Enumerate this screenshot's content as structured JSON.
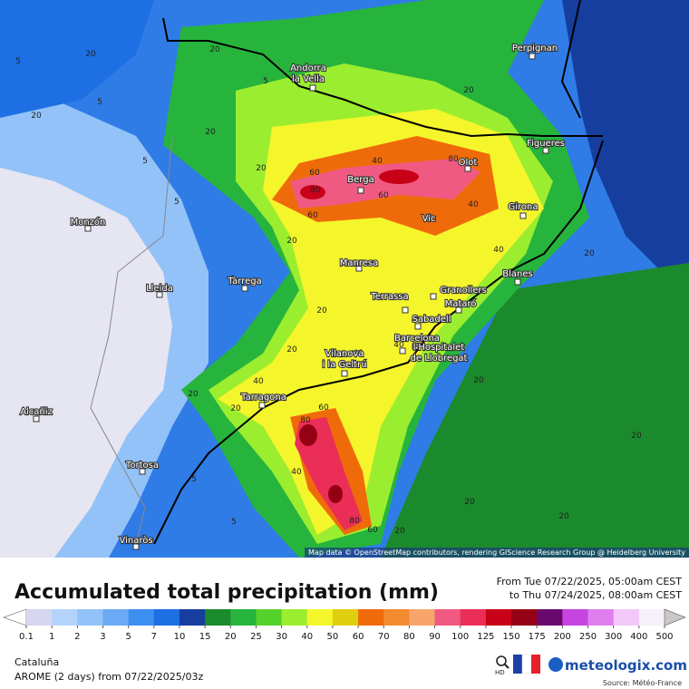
{
  "map": {
    "cities": [
      {
        "label": [
          "Perpignan"
        ]
      },
      {
        "label": [
          "Andorra",
          "la Vella"
        ]
      },
      {
        "label": [
          "Figueres"
        ]
      },
      {
        "label": [
          "Olot"
        ]
      },
      {
        "label": [
          "Berga"
        ]
      },
      {
        "label": [
          "Vic"
        ]
      },
      {
        "label": [
          "Girona"
        ]
      },
      {
        "label": [
          "Monzón"
        ]
      },
      {
        "label": [
          "Manresa"
        ]
      },
      {
        "label": [
          "Blanes"
        ]
      },
      {
        "label": [
          "Tàrrega"
        ]
      },
      {
        "label": [
          "Lleida"
        ]
      },
      {
        "label": [
          "Terrassa"
        ]
      },
      {
        "label": [
          "Granollers"
        ]
      },
      {
        "label": [
          "Mataró"
        ]
      },
      {
        "label": [
          "Sabadell"
        ]
      },
      {
        "label": [
          "Barcelona"
        ]
      },
      {
        "label": [
          "l'Hospitalet",
          "de Llobregat"
        ]
      },
      {
        "label": [
          "Vilanova",
          "i la Geltrú"
        ]
      },
      {
        "label": [
          "Tarragona"
        ]
      },
      {
        "label": [
          "Alcañiz"
        ]
      },
      {
        "label": [
          "Tortosa"
        ]
      },
      {
        "label": [
          "Vinaròs"
        ]
      }
    ],
    "contour_labels": [
      20,
      20,
      5,
      20,
      5,
      20,
      20,
      5,
      5,
      5,
      60,
      80,
      60,
      80,
      60,
      40,
      40,
      40,
      20,
      20,
      20,
      40,
      40,
      20,
      20,
      40,
      20,
      80,
      60,
      40,
      80,
      60,
      20,
      20,
      20,
      5,
      5,
      20,
      20,
      20
    ],
    "attribution": "Map data © OpenStreetMap contributors, rendering GIScience Research Group @ Heidelberg University"
  },
  "header": {
    "title": "Accumulated total precipitation (mm)",
    "period_from": "From Tue 07/22/2025, 05:00am CEST",
    "period_to": "to Thu 07/24/2025, 08:00am CEST"
  },
  "legend": {
    "ticks": [
      0.1,
      1,
      2,
      3,
      5,
      7,
      10,
      15,
      20,
      25,
      30,
      40,
      50,
      60,
      70,
      80,
      90,
      100,
      125,
      150,
      175,
      200,
      250,
      300,
      400,
      500
    ],
    "colors": [
      "#d6d6f0",
      "#b4d3fb",
      "#93c2f8",
      "#6aa9f3",
      "#3d8ef1",
      "#1d6fe3",
      "#163e9f",
      "#1b8a2c",
      "#27b43c",
      "#55d12c",
      "#9bee2f",
      "#f5f52c",
      "#e0cf0e",
      "#ef6b0a",
      "#f28b30",
      "#f8a56c",
      "#f05a82",
      "#ea2e57",
      "#c80018",
      "#960014",
      "#6a0a6f",
      "#c645e0",
      "#e07ef0",
      "#f2c8f8",
      "#f6f0fa"
    ],
    "under_color": "#ffffff",
    "over_color": "#c8c8c8"
  },
  "footer": {
    "region": "Cataluña",
    "model": "AROME (2 days) from 07/22/2025/03z",
    "hd": "HD",
    "brand": "meteologix.com",
    "source": "Source: Météo-France"
  }
}
